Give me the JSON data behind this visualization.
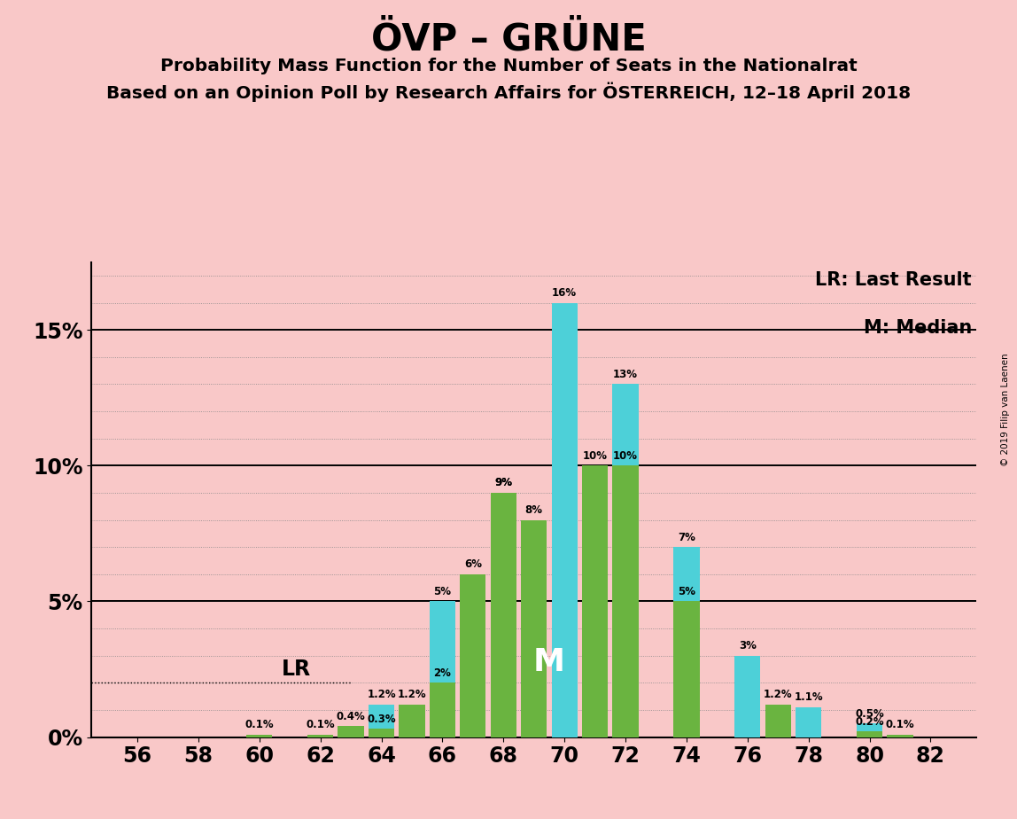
{
  "title": "ÖVP – GRÜNE",
  "subtitle1": "Probability Mass Function for the Number of Seats in the Nationalrat",
  "subtitle2": "Based on an Opinion Poll by Research Affairs for ÖSTERREICH, 12–18 April 2018",
  "legend_lr": "LR: Last Result",
  "legend_m": "M: Median",
  "copyright": "© 2019 Filip van Laenen",
  "background_color": "#f9c8c8",
  "bar_color_cyan": "#4dd0d8",
  "bar_color_green": "#6ab440",
  "seats": [
    56,
    57,
    58,
    59,
    60,
    61,
    62,
    63,
    64,
    65,
    66,
    67,
    68,
    69,
    70,
    71,
    72,
    73,
    74,
    75,
    76,
    77,
    78,
    79,
    80,
    81,
    82
  ],
  "cyan_values": [
    0.0,
    0.0,
    0.0,
    0.0,
    0.0,
    0.0,
    0.0,
    0.0,
    1.2,
    0.0,
    5.0,
    0.0,
    9.0,
    0.0,
    16.0,
    0.0,
    13.0,
    0.0,
    7.0,
    0.0,
    3.0,
    0.0,
    1.1,
    0.0,
    0.5,
    0.0,
    0.0
  ],
  "green_values": [
    0.0,
    0.0,
    0.0,
    0.0,
    0.1,
    0.0,
    0.1,
    0.4,
    0.3,
    1.2,
    2.0,
    6.0,
    9.0,
    8.0,
    0.0,
    10.0,
    10.0,
    0.0,
    5.0,
    0.0,
    0.0,
    1.2,
    0.0,
    0.0,
    0.2,
    0.1,
    0.0
  ],
  "cyan_labels": [
    "",
    "",
    "",
    "",
    "",
    "",
    "",
    "",
    "1.2%",
    "",
    "5%",
    "",
    "9%",
    "",
    "16%",
    "",
    "13%",
    "",
    "7%",
    "",
    "3%",
    "",
    "1.1%",
    "",
    "0.5%",
    "",
    ""
  ],
  "green_labels": [
    "",
    "",
    "",
    "",
    "0.1%",
    "",
    "0.1%",
    "0.4%",
    "0.3%",
    "1.2%",
    "2%",
    "6%",
    "9%",
    "8%",
    "",
    "10%",
    "10%",
    "",
    "5%",
    "",
    "",
    "1.2%",
    "",
    "",
    "0.2%",
    "0.1%",
    ""
  ],
  "ylim": [
    0,
    17.5
  ],
  "yticks": [
    0,
    5,
    10,
    15
  ],
  "yticklabels": [
    "0%",
    "5%",
    "10%",
    "15%"
  ],
  "xlim": [
    54.5,
    83.5
  ],
  "xticks": [
    56,
    58,
    60,
    62,
    64,
    66,
    68,
    70,
    72,
    74,
    76,
    78,
    80,
    82
  ],
  "lr_seat": 63,
  "median_seat": 70,
  "bar_width": 0.85
}
